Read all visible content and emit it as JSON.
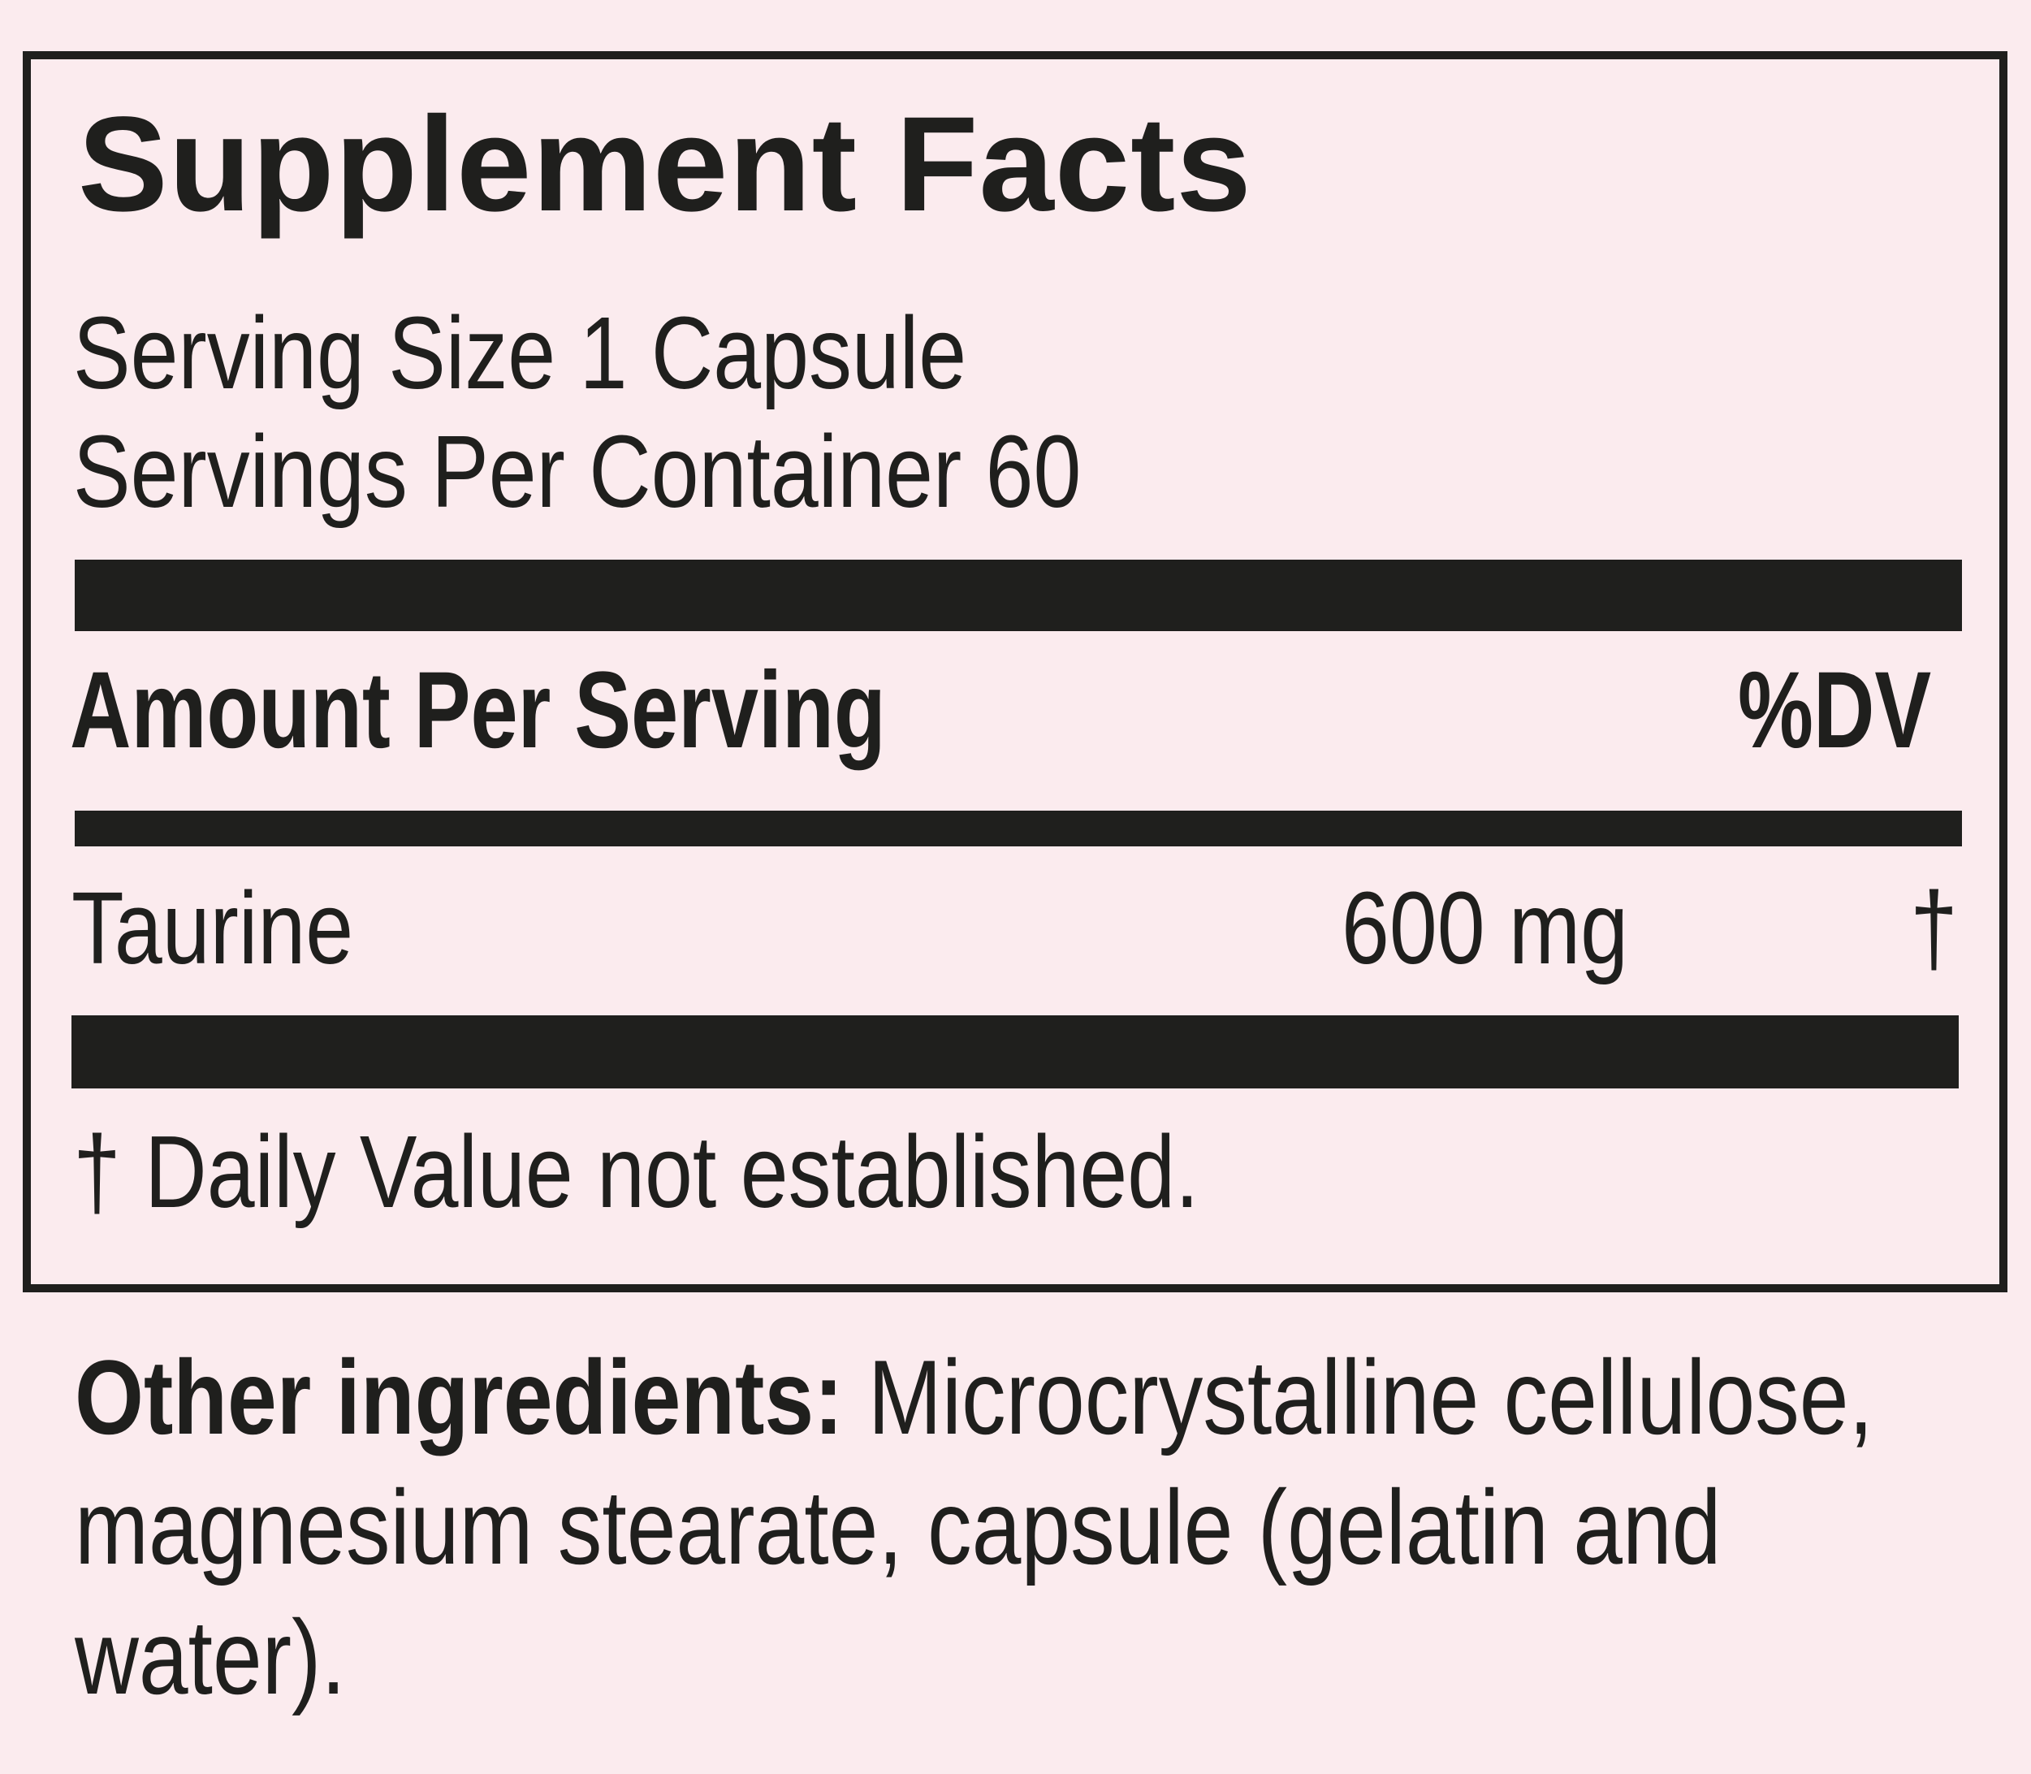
{
  "label": {
    "title": "Supplement Facts",
    "serving_size": "Serving Size 1 Capsule",
    "servings_per_container": "Servings Per Container 60",
    "amount_header": "Amount Per Serving",
    "dv_header": "%DV",
    "ingredients": [
      {
        "name": "Taurine",
        "amount": "600 mg",
        "dv": "†"
      }
    ],
    "footnote": "† Daily Value not established.",
    "other_ingredients_label": "Other ingredients:",
    "other_ingredients_text": "Microcrystalline cellulose, magnesium stearate, capsule (gelatin and water)."
  },
  "colors": {
    "background": "#fbebee",
    "ink": "#1f1f1d"
  }
}
